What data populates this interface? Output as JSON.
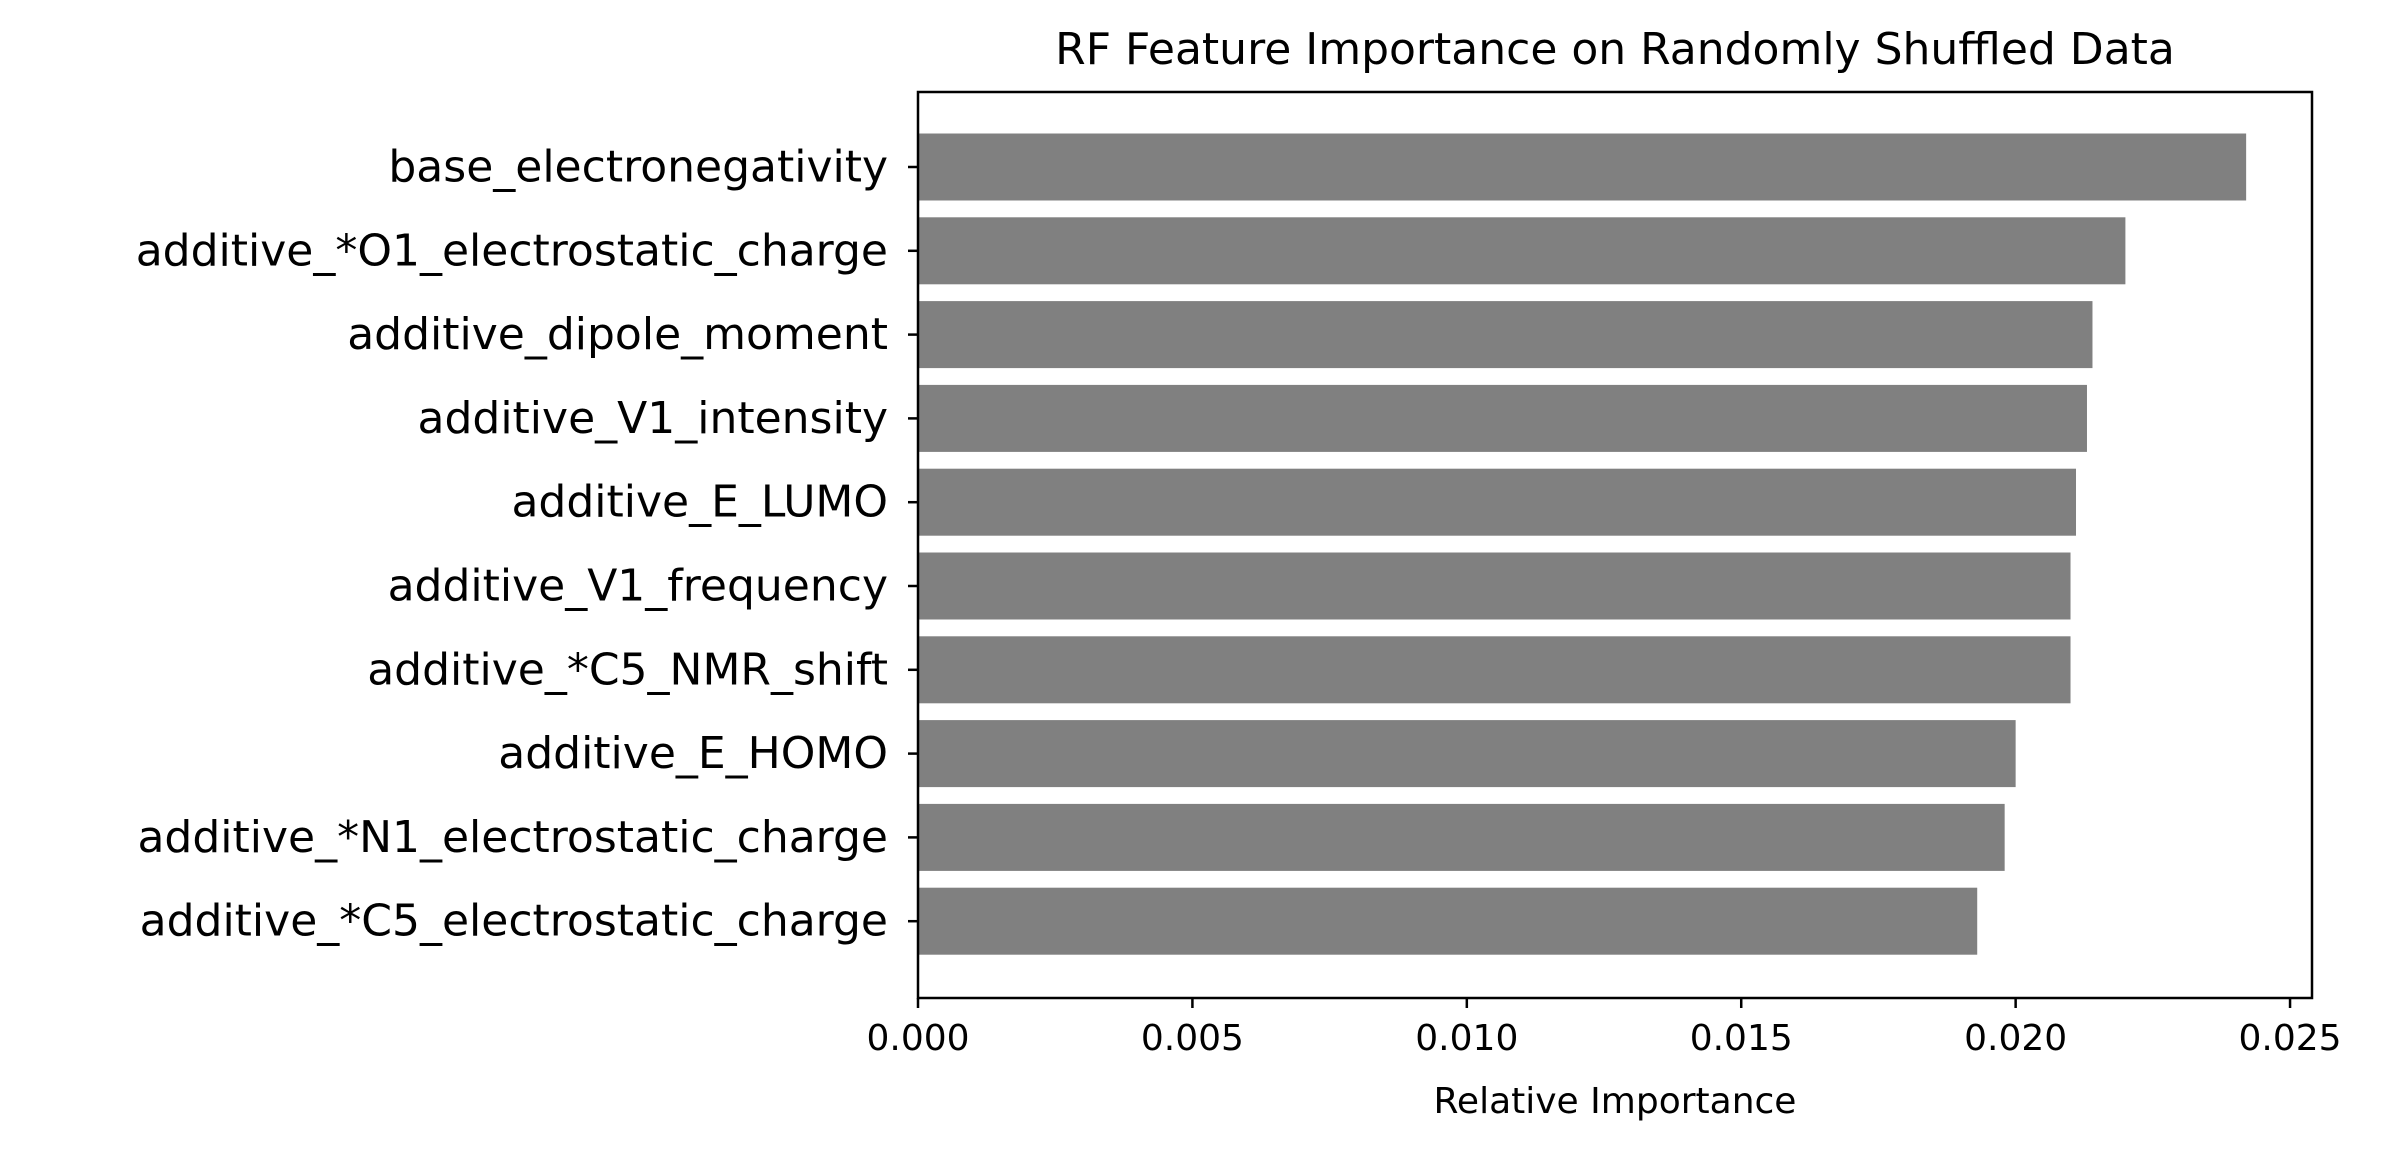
{
  "chart_data": {
    "type": "bar",
    "orientation": "horizontal",
    "title": "RF Feature Importance on Randomly Shuffled Data",
    "xlabel": "Relative Importance",
    "ylabel": "",
    "xlim": [
      0,
      0.0254
    ],
    "xticks": [
      0.0,
      0.005,
      0.01,
      0.015,
      0.02,
      0.025
    ],
    "xtick_labels": [
      "0.000",
      "0.005",
      "0.010",
      "0.015",
      "0.020",
      "0.025"
    ],
    "grid": false,
    "legend": "none",
    "bar_color": "#808080",
    "categories": [
      "base_electronegativity",
      "additive_*O1_electrostatic_charge",
      "additive_dipole_moment",
      "additive_V1_intensity",
      "additive_E_LUMO",
      "additive_V1_frequency",
      "additive_*C5_NMR_shift",
      "additive_E_HOMO",
      "additive_*N1_electrostatic_charge",
      "additive_*C5_electrostatic_charge"
    ],
    "values": [
      0.0242,
      0.022,
      0.0214,
      0.0213,
      0.0211,
      0.021,
      0.021,
      0.02,
      0.0198,
      0.0193
    ]
  }
}
